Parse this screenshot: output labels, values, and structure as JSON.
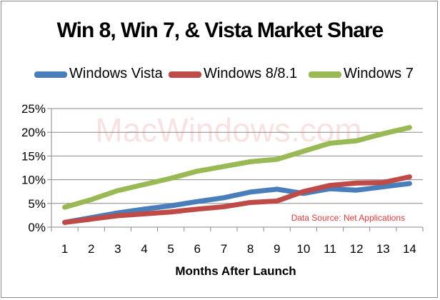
{
  "chart_data": {
    "type": "line",
    "title": "Win 8, Win 7, & Vista Market Share",
    "xlabel": "Months After Launch",
    "ylabel": "",
    "x": [
      1,
      2,
      3,
      4,
      5,
      6,
      7,
      8,
      9,
      10,
      11,
      12,
      13,
      14
    ],
    "xlim": [
      0.5,
      14.5
    ],
    "ylim": [
      0,
      25
    ],
    "yticks": [
      "0%",
      "5%",
      "10%",
      "15%",
      "20%",
      "25%"
    ],
    "ytick_values": [
      0,
      5,
      10,
      15,
      20,
      25
    ],
    "grid": "horizontal",
    "legend_position": "top",
    "series": [
      {
        "name": "Windows Vista",
        "color": "#4a7ebb",
        "values": [
          1.0,
          2.0,
          3.0,
          3.8,
          4.5,
          5.4,
          6.2,
          7.4,
          8.0,
          7.1,
          8.1,
          7.8,
          8.5,
          9.2
        ]
      },
      {
        "name": "Windows 8/8.1",
        "color": "#be4b48",
        "values": [
          1.0,
          1.7,
          2.4,
          2.8,
          3.2,
          3.8,
          4.3,
          5.2,
          5.5,
          7.5,
          8.8,
          9.3,
          9.4,
          10.6
        ]
      },
      {
        "name": "Windows 7",
        "color": "#98b954",
        "values": [
          4.2,
          5.8,
          7.7,
          9.0,
          10.3,
          11.8,
          12.8,
          13.8,
          14.3,
          16.0,
          17.7,
          18.2,
          19.7,
          21.0
        ]
      }
    ],
    "annotations": {
      "watermark": "MacWindows.com",
      "source": "Data Source: Net Applications",
      "source_color": "#e03a3a"
    }
  }
}
